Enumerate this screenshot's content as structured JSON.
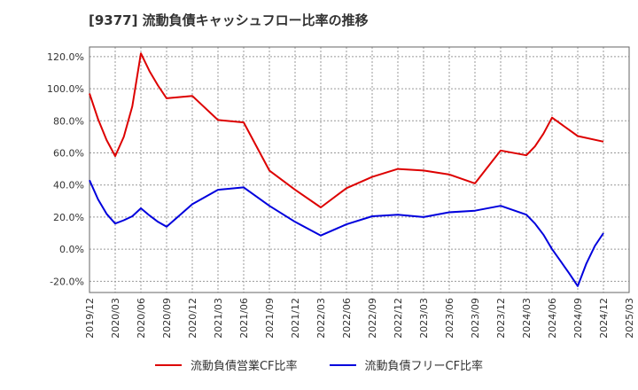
{
  "chart_data": {
    "type": "line",
    "title": "[9377]  流動負債キャッシュフロー比率の推移",
    "xlabel": "",
    "ylabel": "",
    "x_ticks": [
      "2019/12",
      "2020/03",
      "2020/06",
      "2020/09",
      "2020/12",
      "2021/03",
      "2021/06",
      "2021/09",
      "2021/12",
      "2022/03",
      "2022/06",
      "2022/09",
      "2022/12",
      "2023/03",
      "2023/06",
      "2023/09",
      "2023/12",
      "2024/03",
      "2024/06",
      "2024/09",
      "2024/12",
      "2025/03"
    ],
    "y_ticks": [
      "-20.0%",
      "0.0%",
      "20.0%",
      "40.0%",
      "60.0%",
      "80.0%",
      "100.0%",
      "120.0%"
    ],
    "ylim": [
      -27,
      126
    ],
    "grid": true,
    "legend_position": "bottom",
    "series": [
      {
        "name": "流動負債営業CF比率",
        "color": "#dd0000",
        "points": [
          [
            "2019/12",
            97
          ],
          [
            "2020/01",
            81
          ],
          [
            "2020/02",
            68
          ],
          [
            "2020/03",
            58
          ],
          [
            "2020/04",
            70
          ],
          [
            "2020/05",
            89
          ],
          [
            "2020/06",
            122
          ],
          [
            "2020/07",
            111
          ],
          [
            "2020/08",
            102
          ],
          [
            "2020/09",
            94
          ],
          [
            "2020/12",
            95.5
          ],
          [
            "2021/03",
            80.5
          ],
          [
            "2021/06",
            79
          ],
          [
            "2021/09",
            49
          ],
          [
            "2021/12",
            37
          ],
          [
            "2022/03",
            26
          ],
          [
            "2022/06",
            38
          ],
          [
            "2022/09",
            45
          ],
          [
            "2022/12",
            50
          ],
          [
            "2023/03",
            49
          ],
          [
            "2023/06",
            46.5
          ],
          [
            "2023/09",
            41
          ],
          [
            "2023/12",
            61.5
          ],
          [
            "2024/03",
            58.5
          ],
          [
            "2024/04",
            64
          ],
          [
            "2024/05",
            72
          ],
          [
            "2024/06",
            82
          ],
          [
            "2024/09",
            70.5
          ],
          [
            "2024/12",
            67
          ]
        ]
      },
      {
        "name": "流動負債フリーCF比率",
        "color": "#0000dd",
        "points": [
          [
            "2019/12",
            43
          ],
          [
            "2020/01",
            31
          ],
          [
            "2020/02",
            22
          ],
          [
            "2020/03",
            16
          ],
          [
            "2020/04",
            18
          ],
          [
            "2020/05",
            20.5
          ],
          [
            "2020/06",
            25.5
          ],
          [
            "2020/07",
            21
          ],
          [
            "2020/08",
            17
          ],
          [
            "2020/09",
            14
          ],
          [
            "2020/12",
            28
          ],
          [
            "2021/03",
            37
          ],
          [
            "2021/06",
            38.5
          ],
          [
            "2021/09",
            27
          ],
          [
            "2021/12",
            17
          ],
          [
            "2022/03",
            8.5
          ],
          [
            "2022/06",
            15.5
          ],
          [
            "2022/09",
            20.5
          ],
          [
            "2022/12",
            21.5
          ],
          [
            "2023/03",
            20
          ],
          [
            "2023/06",
            23
          ],
          [
            "2023/09",
            24
          ],
          [
            "2023/12",
            27
          ],
          [
            "2024/03",
            21.5
          ],
          [
            "2024/04",
            16
          ],
          [
            "2024/05",
            9
          ],
          [
            "2024/06",
            0
          ],
          [
            "2024/07",
            -7.5
          ],
          [
            "2024/08",
            -15
          ],
          [
            "2024/09",
            -23
          ],
          [
            "2024/10",
            -9
          ],
          [
            "2024/11",
            2
          ],
          [
            "2024/12",
            10
          ]
        ]
      }
    ]
  }
}
